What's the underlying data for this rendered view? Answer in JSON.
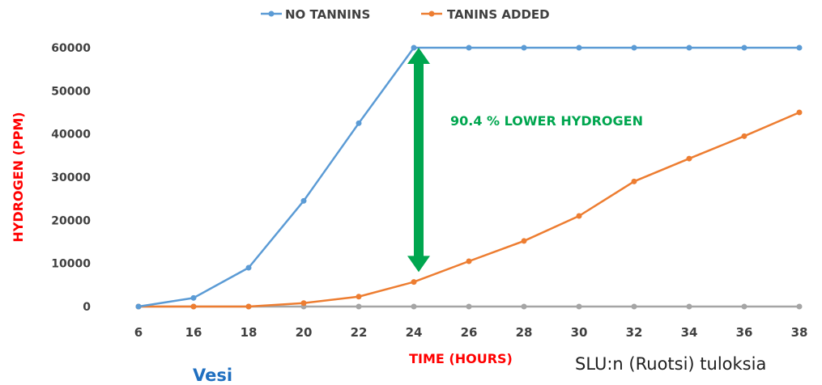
{
  "chart_data": {
    "type": "line",
    "categories": [
      "6",
      "16",
      "18",
      "20",
      "22",
      "24",
      "26",
      "28",
      "30",
      "32",
      "34",
      "36",
      "38"
    ],
    "series": [
      {
        "name": "NO TANNINS",
        "color": "#5b9bd5",
        "values": [
          0,
          2000,
          9000,
          24500,
          42500,
          60000,
          60000,
          60000,
          60000,
          60000,
          60000,
          60000,
          60000
        ]
      },
      {
        "name": "TANINS ADDED",
        "color": "#ed7d31",
        "values": [
          0,
          0,
          0,
          800,
          2300,
          5700,
          10500,
          15200,
          21000,
          29000,
          34300,
          39500,
          45000
        ]
      },
      {
        "color": "#a5a5a5",
        "values": [
          0,
          0,
          0,
          0,
          0,
          0,
          0,
          0,
          0,
          0,
          0,
          0,
          0
        ]
      }
    ],
    "title": "",
    "xlabel": "TIME (HOURS)",
    "ylabel": "HYDROGEN (PPM)",
    "ylim": [
      0,
      60000
    ],
    "yticks": [
      "0",
      "10000",
      "20000",
      "30000",
      "40000",
      "50000",
      "60000"
    ],
    "legend_position": "top-center",
    "annotation": {
      "text": "90.4 % LOWER HYDROGEN",
      "color": "#00a64f",
      "arrow_category": "24",
      "arrow_from": 60000,
      "arrow_to": 8000
    }
  },
  "footer": {
    "source_note": "SLU:n (Ruotsi) tuloksia",
    "cut_text": "Vesi",
    "cut_text_color": "#1f6fc0"
  }
}
